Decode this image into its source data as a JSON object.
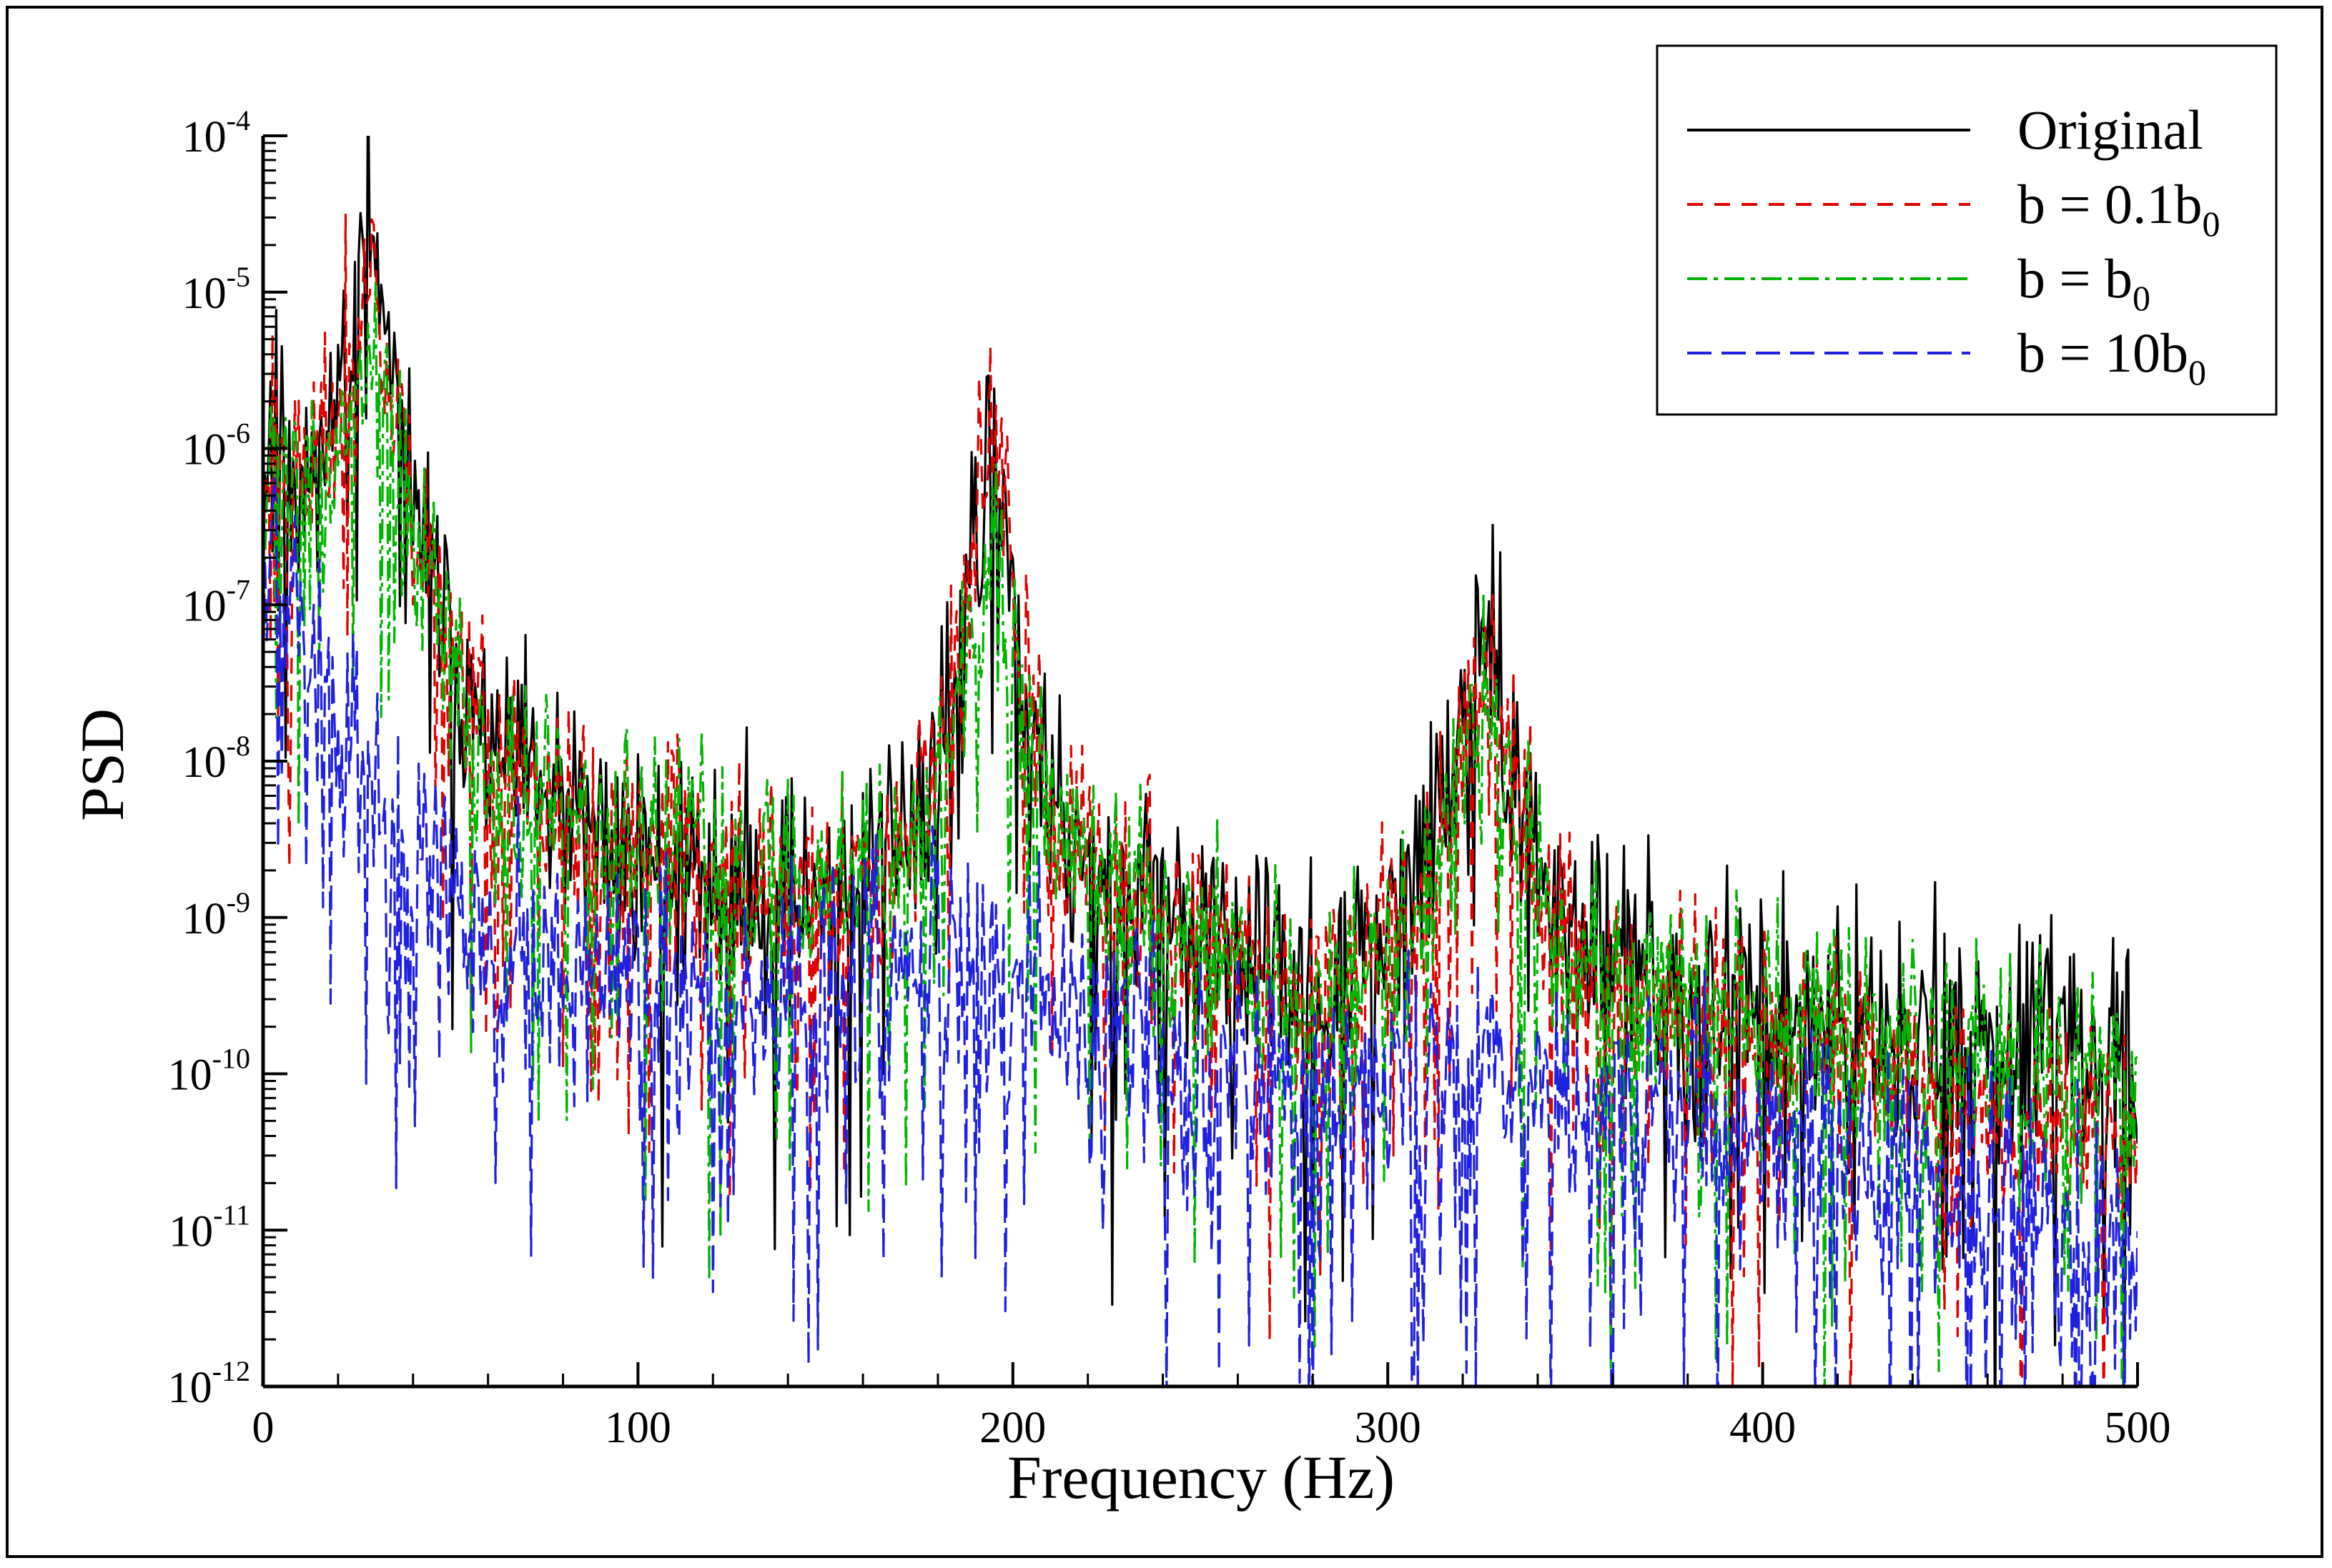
{
  "chart_data": {
    "type": "line",
    "title": "",
    "xlabel": "Frequency (Hz)",
    "ylabel": "PSD",
    "xscale": "linear",
    "yscale": "log",
    "xlim": [
      0,
      500
    ],
    "ylim": [
      1e-12,
      0.0001
    ],
    "x_ticks": [
      0,
      100,
      200,
      300,
      400,
      500
    ],
    "x_tick_labels": [
      "0",
      "100",
      "200",
      "300",
      "400",
      "500"
    ],
    "y_ticks": [
      {
        "exp": -4,
        "base": "10",
        "sup": "-4"
      },
      {
        "exp": -5,
        "base": "10",
        "sup": "-5"
      },
      {
        "exp": -6,
        "base": "10",
        "sup": "-6"
      },
      {
        "exp": -7,
        "base": "10",
        "sup": "-7"
      },
      {
        "exp": -8,
        "base": "10",
        "sup": "-8"
      },
      {
        "exp": -9,
        "base": "10",
        "sup": "-9"
      },
      {
        "exp": -10,
        "base": "10",
        "sup": "-10"
      },
      {
        "exp": -11,
        "base": "10",
        "sup": "-11"
      },
      {
        "exp": -12,
        "base": "10",
        "sup": "-12"
      }
    ],
    "legend_position": "top-right",
    "grid": false,
    "series": [
      {
        "name": "Original",
        "legend_label": {
          "main": "Original",
          "sub": ""
        },
        "color": "#000000",
        "dash": "solid",
        "noise": 0.55,
        "seed": 11,
        "scale": 1.0,
        "dip_prob": 0.06,
        "anchors_x": [
          0,
          2,
          5,
          10,
          15,
          20,
          24,
          27,
          29,
          31,
          34,
          40,
          50,
          60,
          80,
          100,
          130,
          150,
          165,
          175,
          182,
          188,
          192,
          195,
          198,
          201,
          205,
          212,
          225,
          250,
          270,
          285,
          300,
          310,
          318,
          323,
          326,
          328,
          332,
          338,
          345,
          360,
          380,
          400,
          430,
          460,
          500
        ],
        "anchors_log": [
          -6.5,
          -5.6,
          -6.0,
          -6.2,
          -6.0,
          -5.6,
          -5.2,
          -4.6,
          -4.5,
          -5.0,
          -5.6,
          -6.3,
          -7.2,
          -7.9,
          -8.4,
          -8.6,
          -8.8,
          -8.9,
          -8.6,
          -8.2,
          -7.7,
          -7.0,
          -6.3,
          -5.9,
          -6.4,
          -7.2,
          -7.9,
          -8.4,
          -8.8,
          -9.1,
          -9.4,
          -9.5,
          -9.1,
          -8.6,
          -8.0,
          -7.4,
          -7.1,
          -7.3,
          -7.9,
          -8.5,
          -9.0,
          -9.3,
          -9.5,
          -9.6,
          -9.7,
          -9.8,
          -9.9
        ]
      },
      {
        "name": "b = 0.1b0",
        "legend_label": {
          "main": "b = 0.1b",
          "sub": "0"
        },
        "color": "#e00000",
        "dash": "22,16",
        "noise": 0.55,
        "seed": 23,
        "scale": 1.0,
        "dip_prob": 0.08,
        "anchors_x": [
          0,
          2,
          5,
          10,
          15,
          20,
          24,
          27,
          29,
          31,
          34,
          40,
          50,
          60,
          80,
          100,
          130,
          150,
          165,
          175,
          182,
          188,
          192,
          195,
          198,
          201,
          205,
          212,
          225,
          250,
          270,
          285,
          300,
          310,
          318,
          323,
          326,
          328,
          332,
          338,
          345,
          360,
          380,
          400,
          430,
          460,
          500
        ],
        "anchors_log": [
          -6.6,
          -5.7,
          -6.1,
          -6.2,
          -6.0,
          -5.7,
          -5.3,
          -4.8,
          -4.7,
          -5.1,
          -5.6,
          -6.4,
          -7.2,
          -7.9,
          -8.4,
          -8.6,
          -8.8,
          -8.9,
          -8.6,
          -8.2,
          -7.7,
          -7.0,
          -6.3,
          -5.8,
          -6.4,
          -7.2,
          -7.9,
          -8.4,
          -8.8,
          -9.1,
          -9.5,
          -9.6,
          -9.2,
          -8.7,
          -8.1,
          -7.5,
          -7.1,
          -7.3,
          -8.0,
          -8.6,
          -9.1,
          -9.4,
          -9.6,
          -9.8,
          -10.0,
          -10.2,
          -10.4
        ]
      },
      {
        "name": "b = b0",
        "legend_label": {
          "main": "b = b",
          "sub": "0"
        },
        "color": "#00b400",
        "dash": "28,9,6,9",
        "noise": 0.55,
        "seed": 37,
        "scale": 1.0,
        "dip_prob": 0.08,
        "anchors_x": [
          0,
          2,
          5,
          10,
          15,
          20,
          24,
          27,
          29,
          31,
          34,
          40,
          50,
          60,
          80,
          100,
          130,
          150,
          165,
          175,
          182,
          188,
          192,
          195,
          198,
          201,
          205,
          212,
          225,
          250,
          270,
          285,
          300,
          310,
          318,
          323,
          326,
          328,
          332,
          338,
          345,
          360,
          380,
          400,
          430,
          460,
          500
        ],
        "anchors_log": [
          -6.6,
          -5.9,
          -6.2,
          -6.4,
          -6.3,
          -6.0,
          -5.7,
          -5.5,
          -5.4,
          -5.7,
          -6.0,
          -6.6,
          -7.4,
          -8.0,
          -8.4,
          -8.6,
          -8.7,
          -8.8,
          -8.6,
          -8.3,
          -7.9,
          -7.4,
          -7.0,
          -6.8,
          -7.1,
          -7.6,
          -8.0,
          -8.4,
          -8.8,
          -9.1,
          -9.4,
          -9.6,
          -9.2,
          -8.8,
          -8.3,
          -7.9,
          -7.7,
          -7.8,
          -8.2,
          -8.7,
          -9.1,
          -9.4,
          -9.5,
          -9.6,
          -9.8,
          -9.9,
          -10.0
        ]
      },
      {
        "name": "b = 10b0",
        "legend_label": {
          "main": "b = 10b",
          "sub": "0"
        },
        "color": "#2020e0",
        "dash": "34,14",
        "noise": 0.6,
        "seed": 53,
        "scale": 1.0,
        "dip_prob": 0.12,
        "anchors_x": [
          0,
          2,
          5,
          10,
          15,
          20,
          25,
          30,
          35,
          40,
          50,
          60,
          80,
          100,
          130,
          150,
          170,
          185,
          195,
          205,
          220,
          250,
          280,
          300,
          320,
          330,
          345,
          360,
          400,
          430,
          460,
          500
        ],
        "anchors_log": [
          -6.5,
          -6.2,
          -6.6,
          -7.0,
          -7.4,
          -7.8,
          -8.0,
          -8.2,
          -8.4,
          -8.6,
          -8.9,
          -9.1,
          -9.3,
          -9.4,
          -9.5,
          -9.5,
          -9.4,
          -9.3,
          -9.3,
          -9.5,
          -9.7,
          -9.9,
          -10.0,
          -10.0,
          -9.9,
          -9.8,
          -10.0,
          -10.2,
          -10.4,
          -10.6,
          -10.8,
          -11.0
        ]
      }
    ]
  }
}
